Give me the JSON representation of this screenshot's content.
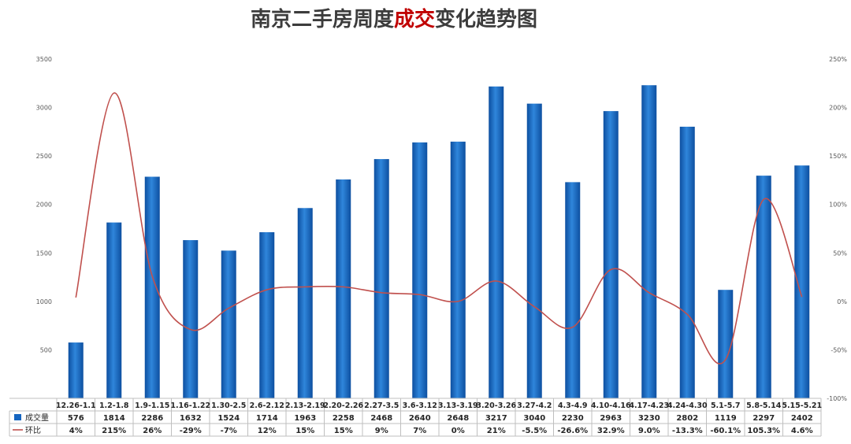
{
  "title": {
    "prefix": "南京二手房周度",
    "highlight": "成交",
    "suffix": "变化趋势图"
  },
  "colors": {
    "bar": "#1565c0",
    "bar_light": "#3b8fe0",
    "line": "#c0504d",
    "highlight": "#c00000",
    "grid": "#d9d9d9",
    "axis_text": "#595959"
  },
  "chart_data": {
    "type": "bar",
    "categories": [
      "12.26-1.1",
      "1.2-1.8",
      "1.9-1.15",
      "1.16-1.22",
      "1.30-2.5",
      "2.6-2.12",
      "2.13-2.19",
      "2.20-2.26",
      "2.27-3.5",
      "3.6-3.12",
      "3.13-3.19",
      "3.20-3.26",
      "3.27-4.2",
      "4.3-4.9",
      "4.10-4.16",
      "4.17-4.23",
      "4.24-4.30",
      "5.1-5.7",
      "5.8-5.14",
      "5.15-5.21"
    ],
    "series": [
      {
        "name": "成交量",
        "type": "bar",
        "axis": "left",
        "values": [
          576,
          1814,
          2286,
          1632,
          1524,
          1714,
          1963,
          2258,
          2468,
          2640,
          2648,
          3217,
          3040,
          2230,
          2963,
          3230,
          2802,
          1119,
          2297,
          2402
        ],
        "labels": [
          "576",
          "1814",
          "2286",
          "1632",
          "1524",
          "1714",
          "1963",
          "2258",
          "2468",
          "2640",
          "2648",
          "3217",
          "3040",
          "2230",
          "2963",
          "3230",
          "2802",
          "1119",
          "2297",
          "2402"
        ]
      },
      {
        "name": "环比",
        "type": "line",
        "axis": "right",
        "values": [
          4,
          215,
          26,
          -29,
          -7,
          12,
          15,
          15,
          9,
          7,
          0,
          21,
          -5.5,
          -26.6,
          32.9,
          9.0,
          -13.3,
          -60.1,
          105.3,
          4.6
        ],
        "labels": [
          "4%",
          "215%",
          "26%",
          "-29%",
          "-7%",
          "12%",
          "15%",
          "15%",
          "9%",
          "7%",
          "0%",
          "21%",
          "-5.5%",
          "-26.6%",
          "32.9%",
          "9.0%",
          "-13.3%",
          "-60.1%",
          "105.3%",
          "4.6%"
        ]
      }
    ],
    "y_left": {
      "range": [
        0,
        3500
      ],
      "ticks": [
        0,
        500,
        1000,
        1500,
        2000,
        2500,
        3000,
        3500
      ],
      "tick_labels": [
        "",
        "500",
        "1000",
        "1500",
        "2000",
        "2500",
        "3000",
        "3500"
      ]
    },
    "y_right": {
      "range": [
        -100,
        250
      ],
      "ticks": [
        -100,
        -50,
        0,
        50,
        100,
        150,
        200,
        250
      ],
      "tick_labels": [
        "-100%",
        "-50%",
        "0%",
        "50%",
        "100%",
        "150%",
        "200%",
        "250%"
      ]
    },
    "grid": false,
    "legend": "data-table-bottom"
  }
}
